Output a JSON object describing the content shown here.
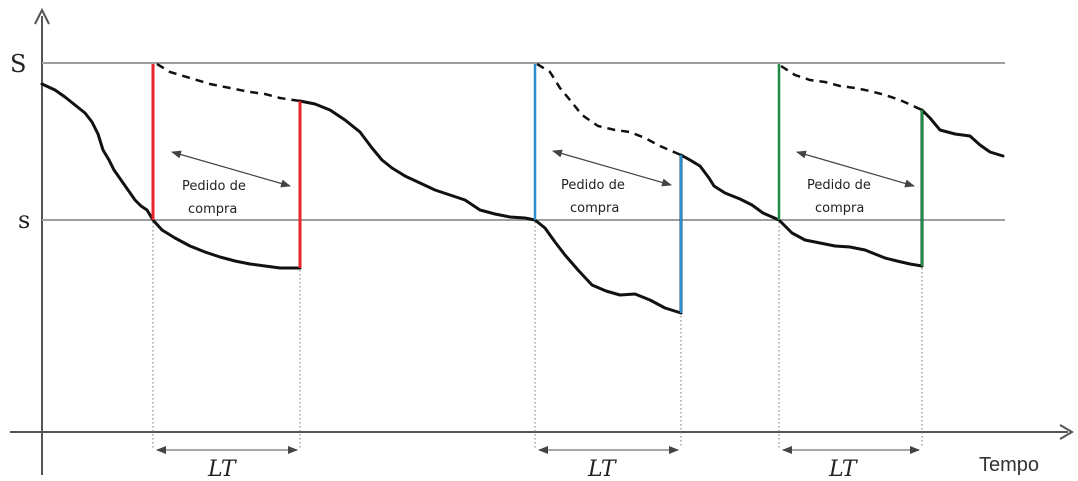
{
  "level_labels": {
    "upper": "S",
    "lower": "s"
  },
  "x_axis_label": "Tempo",
  "cycles": [
    {
      "color": "#e5262b",
      "order_label_line1": "Pedido de",
      "order_label_line2": "compra",
      "lead_time_label": "LT"
    },
    {
      "color": "#2a8fcc",
      "order_label_line1": "Pedido de",
      "order_label_line2": "compra",
      "lead_time_label": "LT"
    },
    {
      "color": "#1e8a45",
      "order_label_line1": "Pedido de",
      "order_label_line2": "compra",
      "lead_time_label": "LT"
    }
  ]
}
